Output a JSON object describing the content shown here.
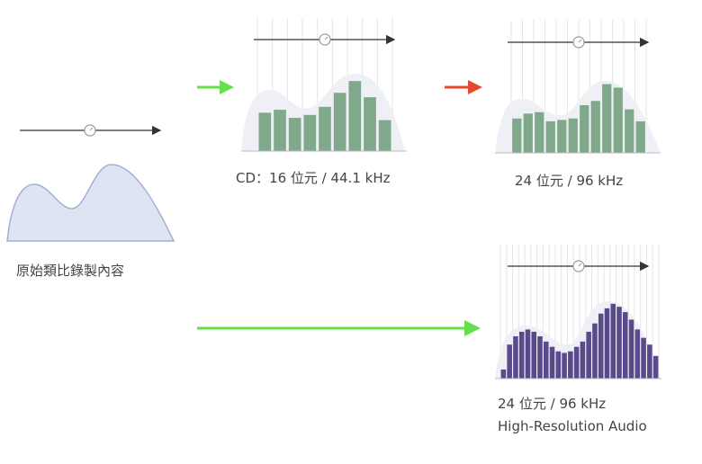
{
  "colors": {
    "analog_fill": "#dfe4f2",
    "analog_stroke": "#9fb0d6",
    "envelope_fill": "#eef0f6",
    "green_bar": "#7fa98a",
    "purple_bar": "#5a4a8c",
    "grid_line": "#e6e6e6",
    "axis_line": "#333333",
    "arrow_green": "#66e04a",
    "arrow_red": "#e54a2e"
  },
  "icons": {
    "time_marker": "clock-circle-icon",
    "arrow_line": "right-arrow-icon"
  },
  "stages": {
    "original": {
      "label": "原始類比錄製內容"
    },
    "cd": {
      "label": "CD：16 位元 / 44.1 kHz",
      "levels": [
        0.52,
        0.56,
        0.45,
        0.49,
        0.6,
        0.79,
        0.95,
        0.73,
        0.42
      ]
    },
    "hires24": {
      "label": "24 位元 / 96 kHz",
      "levels": [
        0.49,
        0.56,
        0.58,
        0.45,
        0.47,
        0.49,
        0.68,
        0.74,
        0.98,
        0.93,
        0.62,
        0.45
      ]
    },
    "hra": {
      "label_line1": "24 位元 / 96 kHz",
      "label_line2": "High-Resolution Audio",
      "levels": [
        0.12,
        0.45,
        0.56,
        0.62,
        0.65,
        0.62,
        0.56,
        0.49,
        0.42,
        0.36,
        0.34,
        0.36,
        0.42,
        0.49,
        0.62,
        0.73,
        0.86,
        0.93,
        0.99,
        0.95,
        0.88,
        0.78,
        0.65,
        0.54,
        0.45,
        0.3
      ]
    }
  }
}
